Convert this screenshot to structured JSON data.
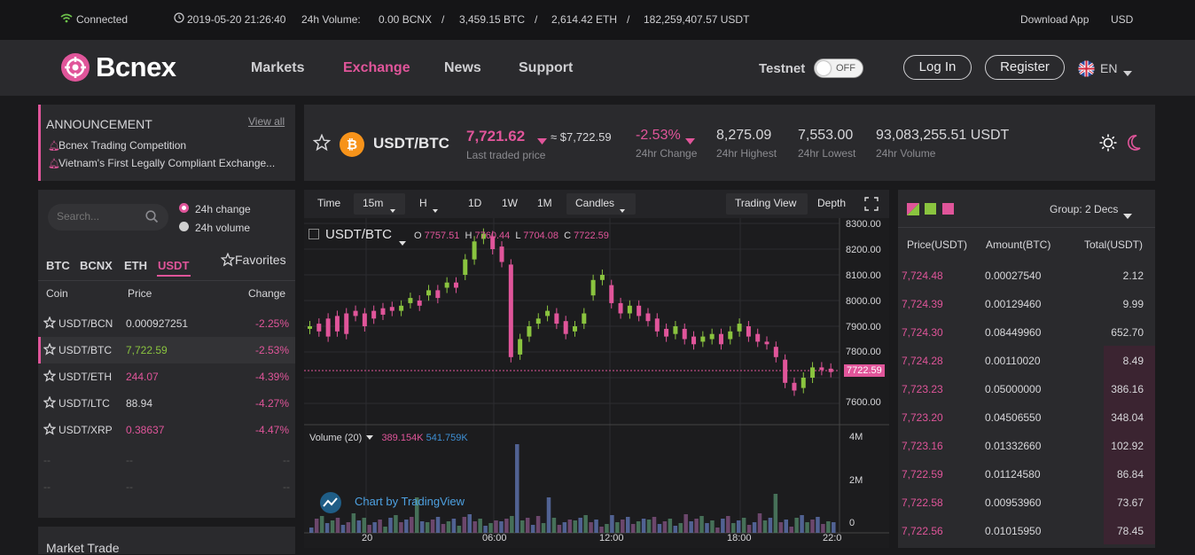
{
  "topbar": {
    "connected": "Connected",
    "datetime": "2019-05-20 21:26:40",
    "vol_label": "24h Volume:",
    "v1": "0.00 BCNX",
    "sep": "/",
    "v2": "3,459.15 BTC",
    "v3": "2,614.42 ETH",
    "v4": "182,259,407.57 USDT",
    "download": "Download App",
    "currency": "USD"
  },
  "nav": {
    "brand": "Bcnex",
    "links": [
      "Markets",
      "Exchange",
      "News",
      "Support"
    ],
    "testnet": "Testnet",
    "toggle": "OFF",
    "login": "Log In",
    "register": "Register",
    "lang": "EN"
  },
  "announcement": {
    "title": "ANNOUNCEMENT",
    "view_all": "View all",
    "items": [
      "Bcnex Trading Competition",
      "Vietnam's First Legally Compliant Exchange..."
    ]
  },
  "ticker": {
    "pair": "USDT/BTC",
    "price": "7,721.62",
    "usd": "≈ $7,722.59",
    "price_label": "Last traded price",
    "change": "-2.53%",
    "change_label": "24hr Change",
    "high": "8,275.09",
    "high_label": "24hr Highest",
    "low": "7,553.00",
    "low_label": "24hr Lowest",
    "volume": "93,083,255.51 USDT",
    "volume_label": "24hr Volume"
  },
  "market": {
    "search_placeholder": "Search...",
    "radio1": "24h change",
    "radio2": "24h volume",
    "tabs": [
      "BTC",
      "BCNX",
      "ETH",
      "USDT"
    ],
    "favorites": "Favorites",
    "headers": [
      "Coin",
      "Price",
      "Change"
    ],
    "rows": [
      {
        "coin": "USDT/BCN",
        "price": "0.000927251",
        "change": "-2.25%"
      },
      {
        "coin": "USDT/BTC",
        "price": "7,722.59",
        "change": "-2.53%"
      },
      {
        "coin": "USDT/ETH",
        "price": "244.07",
        "change": "-4.39%"
      },
      {
        "coin": "USDT/LTC",
        "price": "88.94",
        "change": "-4.27%"
      },
      {
        "coin": "USDT/XRP",
        "price": "0.38637",
        "change": "-4.47%"
      }
    ],
    "empty": "--"
  },
  "market_trade": "Market Trade",
  "chart": {
    "toolbar": {
      "time": "Time",
      "interval": "15m",
      "h": "H",
      "d1": "1D",
      "w1": "1W",
      "m1": "1M",
      "candles": "Candles",
      "tv": "Trading View",
      "depth": "Depth"
    },
    "symbol": "USDT/BTC",
    "ohlc": {
      "o": "O",
      "ov": "7757.51",
      "h": "H",
      "hv": "7760.44",
      "l": "L",
      "lv": "7704.08",
      "c": "C",
      "cv": "7722.59"
    },
    "price_ticks": [
      "8300.00",
      "8200.00",
      "8100.00",
      "8000.00",
      "7900.00",
      "7800.00",
      "7700.00",
      "7600.00"
    ],
    "last": "7722.59",
    "volume_label": "Volume (20)",
    "vol1": "389.154K",
    "vol2": "541.759K",
    "vol_ticks": [
      "4M",
      "2M",
      "0"
    ],
    "time_ticks": [
      "20",
      "06:00",
      "12:00",
      "18:00",
      "22:0"
    ],
    "watermark": "Chart by TradingView"
  },
  "orderbook": {
    "group": "Group: 2 Decs",
    "headers": [
      "Price(USDT)",
      "Amount(BTC)",
      "Total(USDT)"
    ],
    "rows": [
      {
        "price": "7,724.48",
        "amount": "0.00027540",
        "total": "2.12",
        "depth": 0.0
      },
      {
        "price": "7,724.39",
        "amount": "0.00129460",
        "total": "9.99",
        "depth": 0.0
      },
      {
        "price": "7,724.30",
        "amount": "0.08449960",
        "total": "652.70",
        "depth": 0.0
      },
      {
        "price": "7,724.28",
        "amount": "0.00110020",
        "total": "8.49",
        "depth": 0.2
      },
      {
        "price": "7,723.23",
        "amount": "0.05000000",
        "total": "386.16",
        "depth": 0.2
      },
      {
        "price": "7,723.20",
        "amount": "0.04506550",
        "total": "348.04",
        "depth": 0.2
      },
      {
        "price": "7,723.16",
        "amount": "0.01332660",
        "total": "102.92",
        "depth": 0.2
      },
      {
        "price": "7,722.59",
        "amount": "0.01124580",
        "total": "86.84",
        "depth": 0.2
      },
      {
        "price": "7,722.58",
        "amount": "0.00953960",
        "total": "73.67",
        "depth": 0.2
      },
      {
        "price": "7,722.56",
        "amount": "0.01015950",
        "total": "78.45",
        "depth": 0.2
      }
    ]
  },
  "colors": {
    "accent": "#e0559a",
    "up": "#8ac43f",
    "down": "#e0559a",
    "bg": "#1a1a1c",
    "panel": "#2a2a2d"
  }
}
